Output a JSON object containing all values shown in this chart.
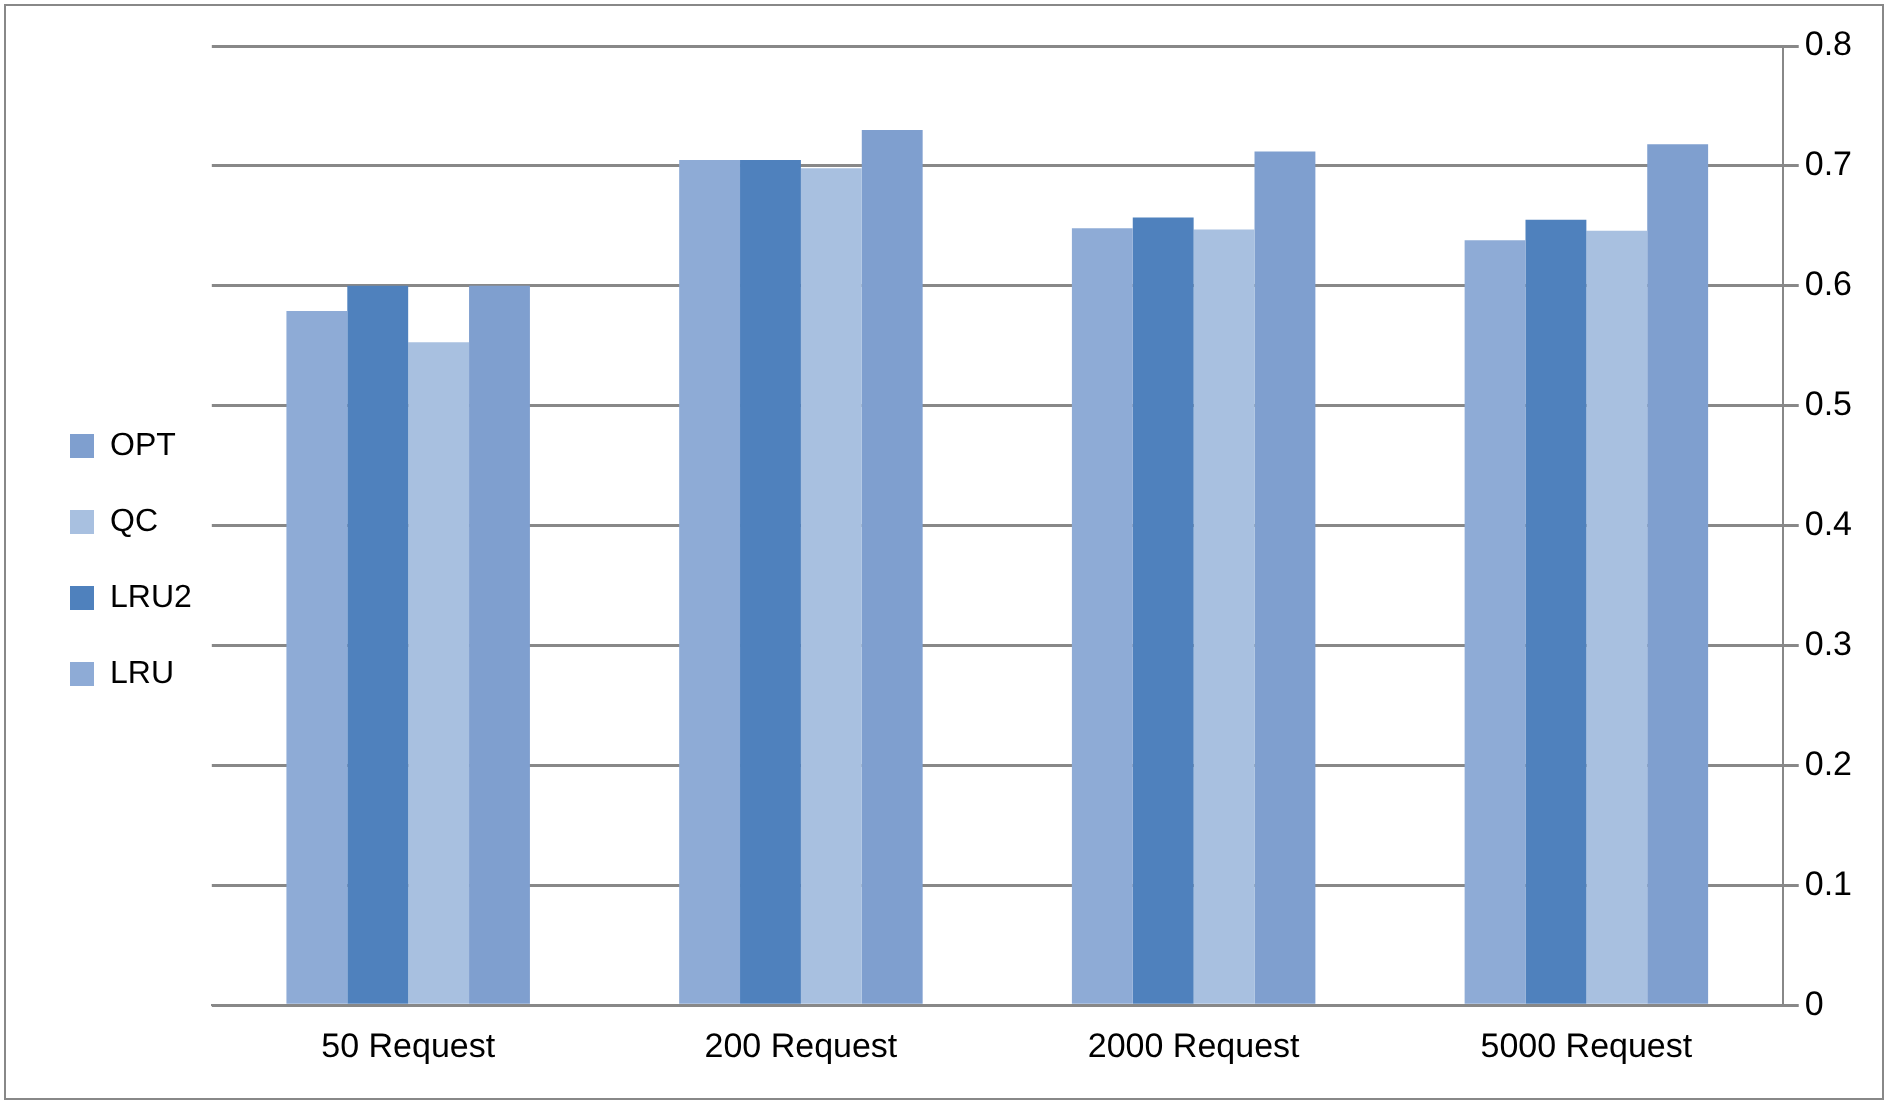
{
  "chart_data": {
    "type": "bar",
    "categories": [
      "50 Request",
      "200 Request",
      "2000 Request",
      "5000 Request"
    ],
    "series": [
      {
        "name": "LRU",
        "color": "#8eabd6",
        "values": [
          0.579,
          0.705,
          0.648,
          0.638
        ]
      },
      {
        "name": "LRU2",
        "color": "#4f81bd",
        "values": [
          0.6,
          0.705,
          0.657,
          0.655
        ]
      },
      {
        "name": "QC",
        "color": "#a8c0e0",
        "values": [
          0.553,
          0.698,
          0.647,
          0.646
        ]
      },
      {
        "name": "OPT",
        "color": "#7f9fcf",
        "values": [
          0.6,
          0.73,
          0.712,
          0.718
        ]
      }
    ],
    "ylim": [
      0,
      0.8
    ],
    "yticks": [
      0,
      0.1,
      0.2,
      0.3,
      0.4,
      0.5,
      0.6,
      0.7,
      0.8
    ],
    "grid": "y",
    "legend": "left"
  }
}
